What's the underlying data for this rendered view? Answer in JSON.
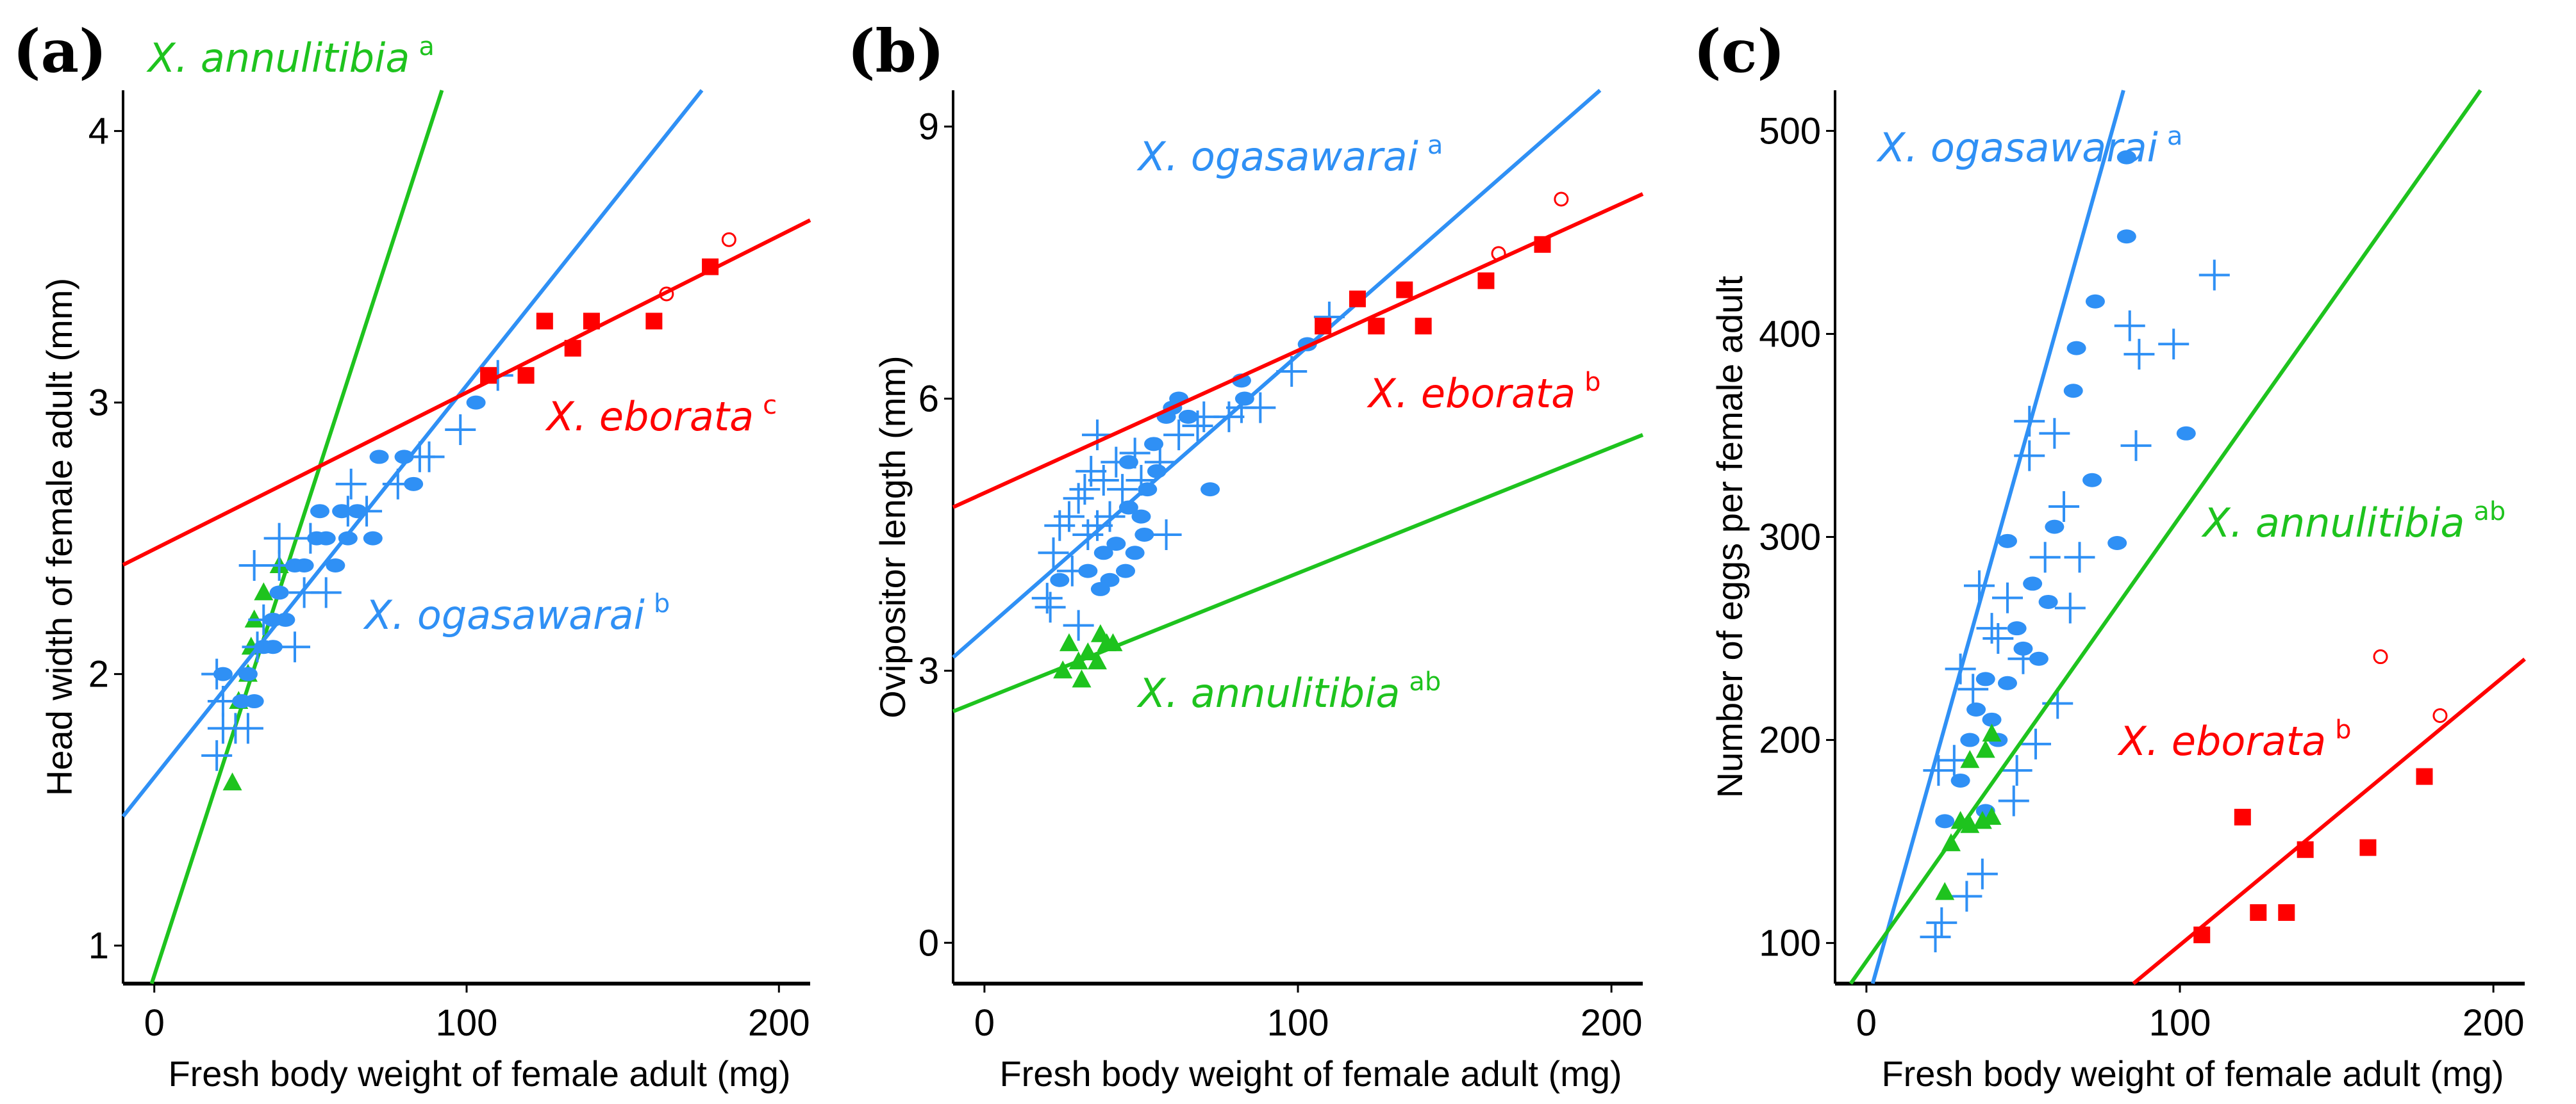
{
  "colors": {
    "ogasawarai": "#2f90f5",
    "annulitibia": "#1ec31e",
    "eborata": "#ff0000"
  },
  "chart_data": [
    {
      "type": "scatter",
      "panel_label": "(a)",
      "xlabel": "Fresh body weight of female adult (mg)",
      "ylabel": "Head width of female adult (mm)",
      "xlim": [
        -10,
        210
      ],
      "ylim": [
        0.86,
        4.15
      ],
      "xticks": [
        0,
        100,
        200
      ],
      "yticks": [
        1,
        2,
        3,
        4
      ],
      "grid": false,
      "series": [
        {
          "key": "annulitibia",
          "name": "X. annulitibia",
          "sup": "a",
          "marker": "triangle",
          "fit": {
            "slope": 0.0354,
            "intercept": 0.89
          },
          "points": [
            [
              25,
              1.6
            ],
            [
              27,
              1.9
            ],
            [
              30,
              2.0
            ],
            [
              31,
              2.1
            ],
            [
              32,
              2.2
            ],
            [
              35,
              2.3
            ],
            [
              40,
              2.4
            ]
          ]
        },
        {
          "key": "ogasawarai",
          "name": "X. ogasawarai",
          "sup": "b",
          "marker": "dot+cross",
          "fit": {
            "slope": 0.01443,
            "intercept": 1.62
          },
          "points": [
            [
              22,
              2.0
            ],
            [
              28,
              1.9
            ],
            [
              32,
              1.9
            ],
            [
              30,
              2.0
            ],
            [
              35,
              2.1
            ],
            [
              38,
              2.2
            ],
            [
              40,
              2.3
            ],
            [
              45,
              2.4
            ],
            [
              48,
              2.4
            ],
            [
              52,
              2.5
            ],
            [
              55,
              2.5
            ],
            [
              58,
              2.4
            ],
            [
              53,
              2.6
            ],
            [
              60,
              2.6
            ],
            [
              62,
              2.5
            ],
            [
              65,
              2.6
            ],
            [
              70,
              2.5
            ],
            [
              72,
              2.8
            ],
            [
              80,
              2.8
            ],
            [
              83,
              2.7
            ],
            [
              103,
              3.0
            ],
            [
              42,
              2.2
            ],
            [
              38,
              2.1
            ]
          ],
          "crosses": [
            [
              20,
              1.7
            ],
            [
              22,
              1.8
            ],
            [
              26,
              1.8
            ],
            [
              30,
              1.8
            ],
            [
              22,
              1.9
            ],
            [
              20,
              2.0
            ],
            [
              33,
              2.1
            ],
            [
              45,
              2.1
            ],
            [
              32,
              2.4
            ],
            [
              40,
              2.4
            ],
            [
              40,
              2.5
            ],
            [
              48,
              2.3
            ],
            [
              55,
              2.3
            ],
            [
              62,
              2.6
            ],
            [
              68,
              2.6
            ],
            [
              63,
              2.7
            ],
            [
              78,
              2.7
            ],
            [
              85,
              2.8
            ],
            [
              88,
              2.8
            ],
            [
              98,
              2.9
            ],
            [
              110,
              3.1
            ],
            [
              35,
              2.2
            ],
            [
              50,
              2.5
            ]
          ]
        },
        {
          "key": "eborata",
          "name": "X. eborata",
          "sup": "c",
          "marker": "square",
          "fit": {
            "slope": 0.00577,
            "intercept": 2.46
          },
          "points": [
            [
              107,
              3.1
            ],
            [
              119,
              3.1
            ],
            [
              125,
              3.3
            ],
            [
              134,
              3.2
            ],
            [
              140,
              3.3
            ],
            [
              160,
              3.3
            ],
            [
              178,
              3.5
            ]
          ],
          "open_points": [
            [
              164,
              3.4
            ],
            [
              184,
              3.6
            ]
          ]
        }
      ]
    },
    {
      "type": "scatter",
      "panel_label": "(b)",
      "xlabel": "Fresh body weight of female adult (mg)",
      "ylabel": "Ovipositor length (mm)",
      "xlim": [
        -10,
        210
      ],
      "ylim": [
        -0.45,
        9.4
      ],
      "xticks": [
        0,
        100,
        200
      ],
      "yticks": [
        0,
        3,
        6,
        9
      ],
      "grid": false,
      "series": [
        {
          "key": "ogasawarai",
          "name": "X. ogasawarai",
          "sup": "a",
          "marker": "dot+cross",
          "fit": {
            "slope": 0.0303,
            "intercept": 3.45
          },
          "points": [
            [
              24,
              4.0
            ],
            [
              33,
              4.1
            ],
            [
              37,
              3.9
            ],
            [
              38,
              4.3
            ],
            [
              40,
              4.0
            ],
            [
              45,
              4.1
            ],
            [
              48,
              4.3
            ],
            [
              50,
              4.7
            ],
            [
              52,
              5.0
            ],
            [
              46,
              4.8
            ],
            [
              54,
              5.5
            ],
            [
              58,
              5.8
            ],
            [
              60,
              5.9
            ],
            [
              62,
              6.0
            ],
            [
              65,
              5.8
            ],
            [
              72,
              5.0
            ],
            [
              82,
              6.2
            ],
            [
              83,
              6.0
            ],
            [
              103,
              6.6
            ],
            [
              46,
              5.3
            ],
            [
              51,
              4.5
            ],
            [
              55,
              5.2
            ],
            [
              42,
              4.4
            ]
          ],
          "crosses": [
            [
              20,
              3.8
            ],
            [
              21,
              3.7
            ],
            [
              22,
              4.3
            ],
            [
              24,
              4.6
            ],
            [
              27,
              4.7
            ],
            [
              30,
              4.9
            ],
            [
              32,
              5.0
            ],
            [
              34,
              5.2
            ],
            [
              36,
              4.6
            ],
            [
              38,
              5.1
            ],
            [
              40,
              4.7
            ],
            [
              36,
              5.6
            ],
            [
              42,
              5.3
            ],
            [
              44,
              5.0
            ],
            [
              48,
              5.4
            ],
            [
              50,
              5.1
            ],
            [
              56,
              5.3
            ],
            [
              58,
              4.5
            ],
            [
              62,
              5.6
            ],
            [
              68,
              5.7
            ],
            [
              70,
              5.8
            ],
            [
              78,
              5.8
            ],
            [
              82,
              5.9
            ],
            [
              88,
              5.9
            ],
            [
              98,
              6.3
            ],
            [
              110,
              6.9
            ],
            [
              30,
              3.5
            ],
            [
              28,
              4.1
            ],
            [
              33,
              4.5
            ]
          ]
        },
        {
          "key": "eborata",
          "name": "X. eborata",
          "sup": "b",
          "marker": "square",
          "fit": {
            "slope": 0.0157,
            "intercept": 4.96
          },
          "points": [
            [
              108,
              6.8
            ],
            [
              119,
              7.1
            ],
            [
              125,
              6.8
            ],
            [
              134,
              7.2
            ],
            [
              140,
              6.8
            ],
            [
              160,
              7.3
            ],
            [
              178,
              7.7
            ]
          ],
          "open_points": [
            [
              164,
              7.6
            ],
            [
              184,
              8.2
            ]
          ]
        },
        {
          "key": "annulitibia",
          "name": "X. annulitibia",
          "sup": "ab",
          "marker": "triangle",
          "fit": {
            "slope": 0.01386,
            "intercept": 2.69
          },
          "points": [
            [
              25,
              3.0
            ],
            [
              27,
              3.3
            ],
            [
              30,
              3.1
            ],
            [
              31,
              2.9
            ],
            [
              33,
              3.2
            ],
            [
              36,
              3.1
            ],
            [
              37,
              3.4
            ],
            [
              39,
              3.3
            ],
            [
              41,
              3.3
            ]
          ]
        }
      ]
    },
    {
      "type": "scatter",
      "panel_label": "(c)",
      "xlabel": "Fresh body weight of female adult (mg)",
      "ylabel": "Number of eggs per female adult",
      "xlim": [
        -10,
        210
      ],
      "ylim": [
        80,
        520
      ],
      "xticks": [
        0,
        100,
        200
      ],
      "yticks": [
        100,
        200,
        300,
        400,
        500
      ],
      "grid": false,
      "series": [
        {
          "key": "ogasawarai",
          "name": "X. ogasawarai",
          "sup": "a",
          "marker": "dot+cross",
          "fit": {
            "slope": 5.5,
            "intercept": 69
          },
          "points": [
            [
              83,
              487
            ],
            [
              83,
              448
            ],
            [
              73,
              416
            ],
            [
              67,
              393
            ],
            [
              66,
              372
            ],
            [
              72,
              328
            ],
            [
              80,
              297
            ],
            [
              102,
              351
            ],
            [
              60,
              305
            ],
            [
              45,
              298
            ],
            [
              53,
              277
            ],
            [
              58,
              268
            ],
            [
              48,
              255
            ],
            [
              50,
              245
            ],
            [
              45,
              228
            ],
            [
              40,
              210
            ],
            [
              35,
              215
            ],
            [
              30,
              180
            ],
            [
              25,
              160
            ],
            [
              42,
              200
            ],
            [
              55,
              240
            ],
            [
              38,
              230
            ],
            [
              33,
              200
            ],
            [
              38,
              165
            ]
          ],
          "crosses": [
            [
              111,
              429
            ],
            [
              84,
              404
            ],
            [
              87,
              390
            ],
            [
              98,
              395
            ],
            [
              86,
              345
            ],
            [
              52,
              357
            ],
            [
              60,
              351
            ],
            [
              52,
              340
            ],
            [
              63,
              315
            ],
            [
              68,
              290
            ],
            [
              65,
              265
            ],
            [
              50,
              240
            ],
            [
              36,
              276
            ],
            [
              45,
              270
            ],
            [
              42,
              250
            ],
            [
              30,
              235
            ],
            [
              34,
              225
            ],
            [
              28,
              190
            ],
            [
              22,
              103
            ],
            [
              24,
              110
            ],
            [
              32,
              123
            ],
            [
              37,
              134
            ],
            [
              48,
              185
            ],
            [
              54,
              198
            ],
            [
              61,
              218
            ],
            [
              47,
              170
            ],
            [
              23,
              185
            ],
            [
              57,
              290
            ],
            [
              40,
              255
            ]
          ]
        },
        {
          "key": "annulitibia",
          "name": "X. annulitibia",
          "sup": "ab",
          "marker": "triangle",
          "fit": {
            "slope": 2.19,
            "intercept": 91
          },
          "points": [
            [
              25,
              125
            ],
            [
              27,
              149
            ],
            [
              30,
              160
            ],
            [
              33,
              158
            ],
            [
              37,
              160
            ],
            [
              40,
              162
            ],
            [
              38,
              195
            ],
            [
              40,
              203
            ],
            [
              33,
              190
            ]
          ]
        },
        {
          "key": "eborata",
          "name": "X. eborata",
          "sup": "b",
          "marker": "square",
          "fit": {
            "slope": 1.28,
            "intercept": -29
          },
          "points": [
            [
              107,
              104
            ],
            [
              120,
              162
            ],
            [
              125,
              115
            ],
            [
              134,
              115
            ],
            [
              140,
              146
            ],
            [
              160,
              147
            ],
            [
              178,
              182
            ]
          ],
          "open_points": [
            [
              164,
              241
            ],
            [
              183,
              212
            ]
          ]
        }
      ]
    }
  ]
}
